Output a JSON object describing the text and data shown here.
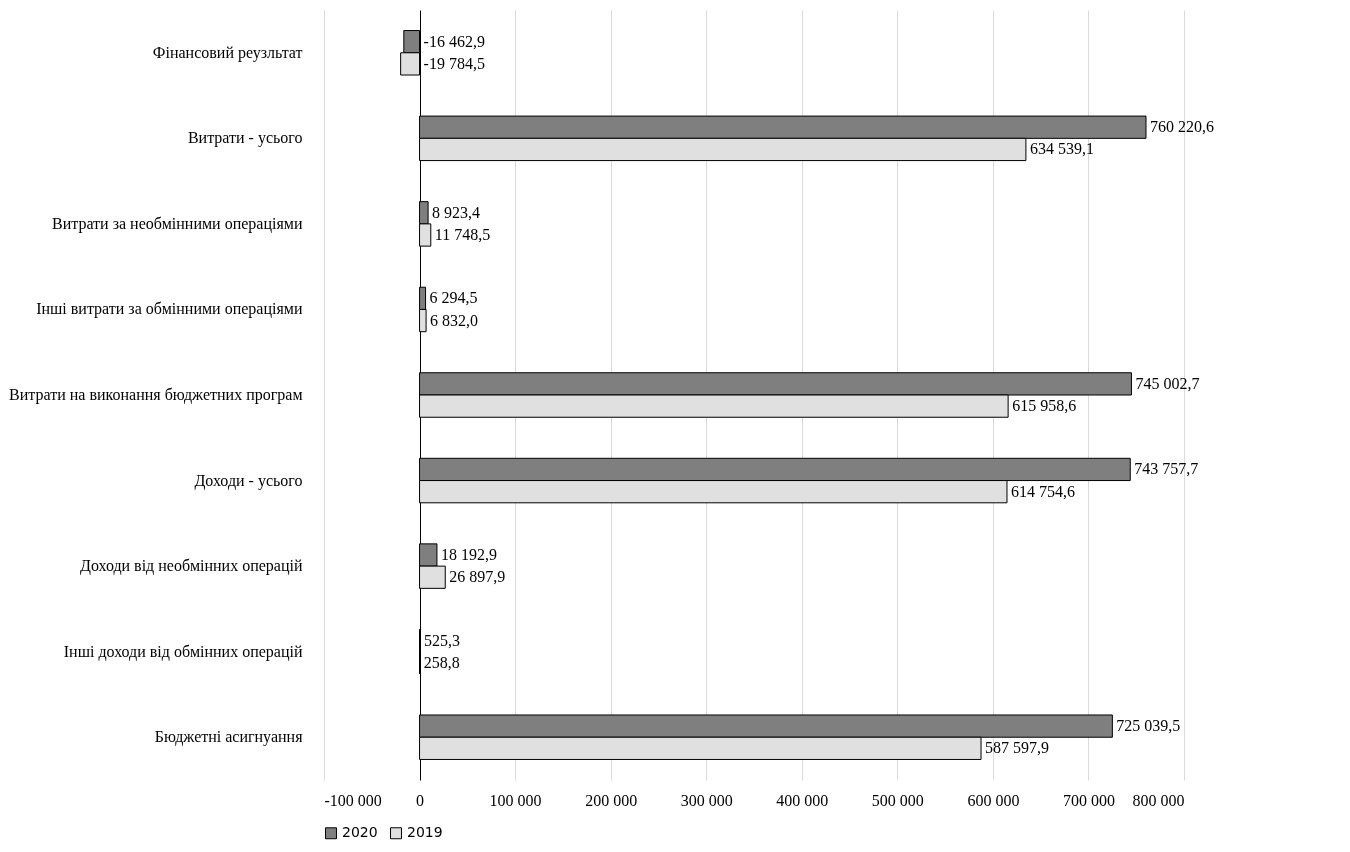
{
  "chart_data": {
    "type": "bar",
    "orientation": "horizontal",
    "categories": [
      "Фінансовий реузльтат",
      "Витрати - усього",
      "Витрати за необмінними операціями",
      "Інші витрати за обмінними операціями",
      "Витрати на виконання бюджетних програм",
      "Доходи - усього",
      "Доходи від необмінних операцій",
      "Інші доходи від обмінних операцій",
      "Бюджетні асигнуання"
    ],
    "series": [
      {
        "name": "2020",
        "color": "#7f7f7f",
        "values": [
          -16462.9,
          760220.6,
          8923.4,
          6294.5,
          745002.7,
          743757.7,
          18192.9,
          525.3,
          725039.5
        ],
        "value_labels": [
          "-16 462,9",
          "760 220,6",
          "8 923,4",
          "6 294,5",
          "745 002,7",
          "743 757,7",
          "18 192,9",
          "525,3",
          "725 039,5"
        ]
      },
      {
        "name": "2019",
        "color": "#e0e0e0",
        "values": [
          -19784.5,
          634539.1,
          11748.5,
          6832.0,
          615958.6,
          614754.6,
          26897.9,
          258.8,
          587597.9
        ],
        "value_labels": [
          "-19 784,5",
          "634 539,1",
          "11 748,5",
          "6 832,0",
          "615 958,6",
          "614 754,6",
          "26 897,9",
          "258,8",
          "587 597,9"
        ]
      }
    ],
    "xlim": [
      -100000,
      800000
    ],
    "xticks": [
      {
        "value": -100000,
        "label": "-100 000"
      },
      0,
      {
        "value": 100000,
        "label": "100 000"
      },
      {
        "value": 200000,
        "label": "200 000"
      },
      {
        "value": 300000,
        "label": "300 000"
      },
      {
        "value": 400000,
        "label": "400 000"
      },
      {
        "value": 500000,
        "label": "500 000"
      },
      {
        "value": 600000,
        "label": "600 000"
      },
      {
        "value": 700000,
        "label": "700 000"
      },
      {
        "value": 800000,
        "label": "800 000"
      }
    ],
    "grid": "x",
    "legend": "bottom"
  }
}
